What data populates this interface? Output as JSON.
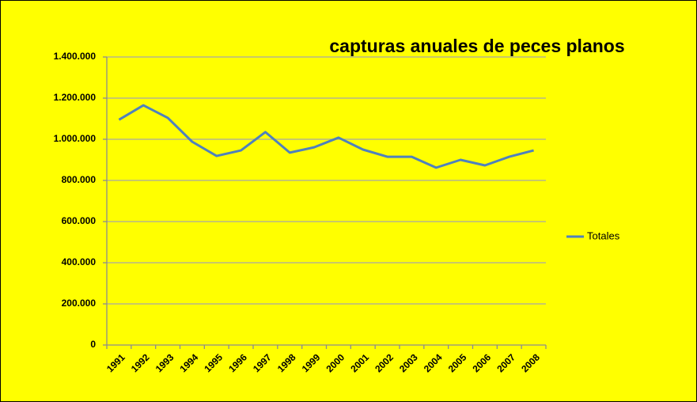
{
  "chart_data": {
    "type": "line",
    "title": "capturas anuales de peces planos",
    "categories": [
      "1991",
      "1992",
      "1993",
      "1994",
      "1995",
      "1996",
      "1997",
      "1998",
      "1999",
      "2000",
      "2001",
      "2002",
      "2003",
      "2004",
      "2005",
      "2006",
      "2007",
      "2008"
    ],
    "series": [
      {
        "name": "Totales",
        "color": "#4f81bd",
        "values": [
          1095000,
          1165000,
          1104000,
          988000,
          919000,
          946000,
          1035000,
          935000,
          961000,
          1008000,
          950000,
          915000,
          915000,
          862000,
          900000,
          873000,
          915000,
          946000
        ]
      }
    ],
    "ylim": [
      0,
      1400000
    ],
    "yticks": [
      0,
      {
        "value": 200000,
        "label": "200.000"
      },
      {
        "value": 400000,
        "label": "400.000"
      },
      {
        "value": 600000,
        "label": "600.000"
      },
      {
        "value": 800000,
        "label": "800.000"
      },
      {
        "value": 1000000,
        "label": "1.000.000"
      },
      {
        "value": 1200000,
        "label": "1.200.000"
      },
      {
        "value": 1400000,
        "label": "1.400.000"
      }
    ],
    "grid": true,
    "legend": "right"
  }
}
